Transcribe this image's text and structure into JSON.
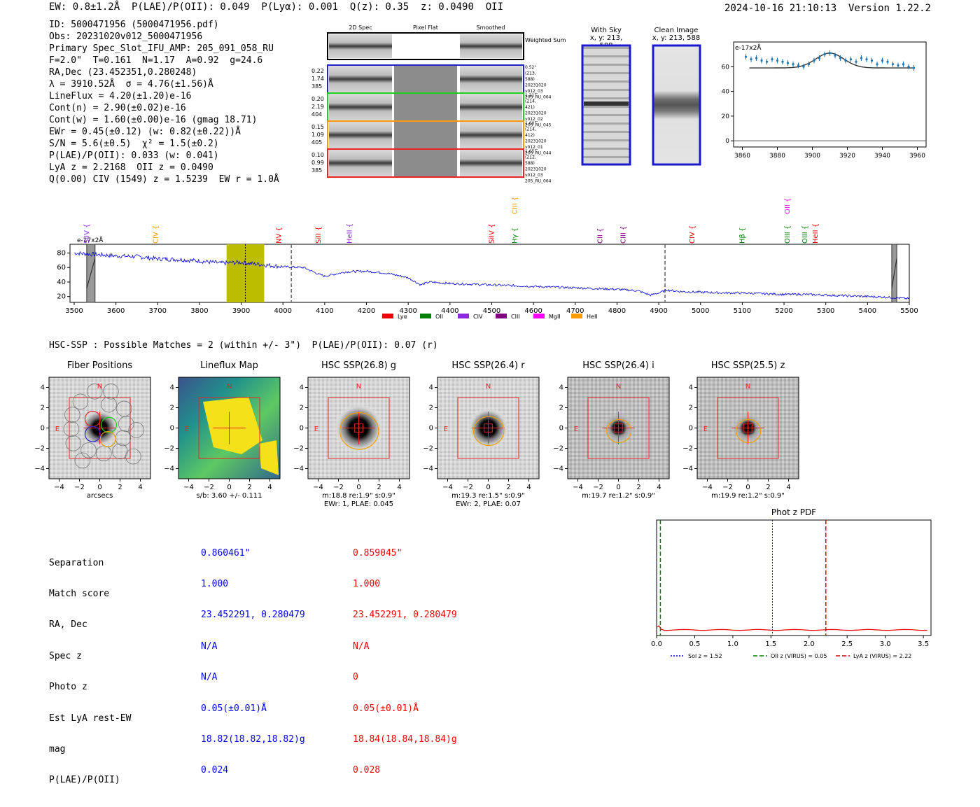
{
  "header": {
    "left": "EW: 0.8±1.2Å  P(LAE)/P(OII): 0.049  P(Lyα): 0.001  Q(z): 0.35  z: 0.0490  OII",
    "right": "2024-10-16 21:10:13  Version 1.22.2"
  },
  "info_lines": [
    "ID: 5000471956 (5000471956.pdf)",
    "Obs: 20231020v012_5000471956",
    "Primary Spec_Slot_IFU_AMP: 205_091_058_RU",
    "F=2.0\"  T=0.161  N=1.17  A=0.92  g=24.6",
    "RA,Dec (23.452351,0.280248)",
    "λ = 3910.52Å  σ = 4.76(±1.56)Å",
    "LineFlux = 4.20(±1.20)e-16",
    "Cont(n) = 2.90(±0.02)e-16",
    "Cont(w) = 1.60(±0.00)e-16 (gmag 18.71)",
    "EWr = 0.45(±0.12) (w: 0.82(±0.22))Å",
    "S/N = 5.6(±0.5)  χ² = 1.5(±0.2)",
    "P(LAE)/P(OII): 0.033 (w: 0.041)",
    "LyA z = 2.2168  OII z = 0.0490",
    "Q(0.00) CIV (1549) z = 1.5239  EW r = 1.0Å"
  ],
  "cutouts": {
    "headers": [
      "2D Spec",
      "Pixel Flat",
      "Smoothed"
    ],
    "weighted_label": "Weighted Sum",
    "rows": [
      {
        "left": "0.22 1.74 385",
        "right": "0.52\" (213, 588) 20231020 v012_03 205_RU_064",
        "color": "#2222cc"
      },
      {
        "left": "0.20 2.19 404",
        "right": "1.21\" (214, 421) 20231020 v012_02 205_RU_045",
        "color": "#22cc22"
      },
      {
        "left": "0.15 1.09 405",
        "right": "1.60\" (214, 412) 20231020 v012_01 205_RU_044",
        "color": "#ff9900"
      },
      {
        "left": "0.10 0.99 385",
        "right": "1.65\" (212, 588) 20231020 v012_03 205_RU_064",
        "color": "#ee2222"
      }
    ]
  },
  "sky": {
    "with_sky": "With Sky",
    "with_sky_xy": "x, y: 213, 588",
    "clean": "Clean Image",
    "clean_xy": "x, y: 213, 588"
  },
  "zoom_chart": {
    "type": "scatter",
    "ylabel": "e-17x2Å",
    "x_ticks": [
      3860,
      3880,
      3900,
      3920,
      3940,
      3960
    ],
    "y_ticks": [
      0,
      20,
      40,
      60
    ],
    "xlim": [
      3855,
      3965
    ],
    "ylim": [
      -5,
      80
    ],
    "x": [
      3862,
      3865,
      3868,
      3871,
      3874,
      3877,
      3880,
      3883,
      3886,
      3889,
      3892,
      3895,
      3898,
      3901,
      3904,
      3907,
      3910,
      3913,
      3916,
      3919,
      3922,
      3925,
      3928,
      3931,
      3934,
      3937,
      3940,
      3943,
      3946,
      3949,
      3952,
      3955,
      3958
    ],
    "y": [
      68,
      66,
      67,
      65,
      64,
      66,
      65,
      64,
      63,
      62,
      61,
      60,
      62,
      65,
      67,
      70,
      71,
      69,
      67,
      65,
      66,
      64,
      67,
      66,
      65,
      62,
      65,
      64,
      62,
      61,
      62,
      60,
      59
    ],
    "model_baseline": 59,
    "model_peak": 71,
    "model_center": 3910
  },
  "spectrum": {
    "type": "line",
    "ylabel": "e-17x2Å",
    "x_ticks": [
      3500,
      3600,
      3700,
      3800,
      3900,
      4000,
      4100,
      4200,
      4300,
      4400,
      4500,
      4600,
      4700,
      4800,
      4900,
      5000,
      5100,
      5200,
      5300,
      5400,
      5500
    ],
    "y_ticks": [
      20,
      40,
      60,
      80
    ],
    "xlim": [
      3490,
      5500
    ],
    "ylim": [
      12,
      92
    ],
    "knots_x": [
      3500,
      3550,
      3600,
      3650,
      3700,
      3750,
      3800,
      3850,
      3900,
      3950,
      4000,
      4050,
      4080,
      4100,
      4150,
      4200,
      4250,
      4300,
      4330,
      4350,
      4400,
      4450,
      4500,
      4550,
      4600,
      4650,
      4700,
      4750,
      4800,
      4850,
      4880,
      4900,
      4920,
      4950,
      5000,
      5050,
      5100,
      5150,
      5200,
      5250,
      5300,
      5350,
      5400,
      5450,
      5500
    ],
    "knots_y": [
      80,
      78,
      76,
      75,
      72,
      71,
      69,
      66,
      67,
      64,
      61,
      60,
      52,
      48,
      54,
      55,
      52,
      46,
      36,
      40,
      38,
      37,
      36,
      35,
      34,
      33,
      32,
      31,
      30,
      28,
      22,
      25,
      29,
      27,
      26,
      25,
      25,
      24,
      23,
      23,
      22,
      21,
      20,
      19,
      17
    ],
    "highlight": [
      3865,
      3955
    ],
    "dashed": [
      4020,
      4915
    ],
    "dotted": 3910,
    "masked": [
      [
        3530,
        3550
      ],
      [
        5458,
        5470
      ]
    ],
    "lines": [
      {
        "name": "SiIV",
        "wave": 3530,
        "color": "#8a2be2",
        "row": 0
      },
      {
        "name": "CIV",
        "wave": 3695,
        "color": "#ff9900",
        "row": 0
      },
      {
        "name": "NV",
        "wave": 3990,
        "color": "#ee0000",
        "row": 0
      },
      {
        "name": "SiII",
        "wave": 4085,
        "color": "#ee0000",
        "row": 0
      },
      {
        "name": "HeII",
        "wave": 4160,
        "color": "#8a2be2",
        "row": 0
      },
      {
        "name": "SiIV",
        "wave": 4500,
        "color": "#ee0000",
        "row": 0
      },
      {
        "name": "CIII",
        "wave": 4555,
        "color": "#ff9900",
        "row": 1
      },
      {
        "name": "Hγ",
        "wave": 4555,
        "color": "#008000",
        "row": 0
      },
      {
        "name": "CII",
        "wave": 4760,
        "color": "#800080",
        "row": 0
      },
      {
        "name": "CIII",
        "wave": 4815,
        "color": "#800080",
        "row": 0
      },
      {
        "name": "CIV",
        "wave": 4980,
        "color": "#ee0000",
        "row": 0
      },
      {
        "name": "Hβ",
        "wave": 5100,
        "color": "#008000",
        "row": 0
      },
      {
        "name": "OII",
        "wave": 5208,
        "color": "#ff00ff",
        "row": 1
      },
      {
        "name": "OIII",
        "wave": 5208,
        "color": "#008000",
        "row": 0
      },
      {
        "name": "OIII",
        "wave": 5250,
        "color": "#008000",
        "row": 0
      },
      {
        "name": "HeII",
        "wave": 5275,
        "color": "#ee0000",
        "row": 0
      }
    ],
    "legend": [
      {
        "name": "Lyα",
        "color": "#ee0000"
      },
      {
        "name": "OII",
        "color": "#008000"
      },
      {
        "name": "CIV",
        "color": "#8a2be2"
      },
      {
        "name": "CIII",
        "color": "#800080"
      },
      {
        "name": "MgII",
        "color": "#ff00ff"
      },
      {
        "name": "HeII",
        "color": "#ff9900"
      }
    ]
  },
  "hsc_title": "HSC-SSP : Possible Matches = 2 (within +/- 3\")  P(LAE)/P(OII): 0.07 (r)",
  "panels": [
    {
      "title": "Fiber Positions",
      "caption": "arcsecs",
      "caption2": ""
    },
    {
      "title": "Lineflux Map",
      "caption": "s/b: 3.60 +/- 0.111",
      "caption2": ""
    },
    {
      "title": "HSC SSP(26.8) g",
      "caption": "m:18.8  re:1.9\"  s:0.9\"",
      "caption2": "EWr: 1, PLAE: 0.045"
    },
    {
      "title": "HSC SSP(26.4) r",
      "caption": "m:19.3  re:1.5\"  s:0.9\"",
      "caption2": "EWr: 2, PLAE: 0.07"
    },
    {
      "title": "HSC SSP(26.4) i",
      "caption": "m:19.7  re:1.2\"  s:0.9\"",
      "caption2": ""
    },
    {
      "title": "HSC SSP(25.5) z",
      "caption": "m:19.9  re:1.2\"  s:0.9\"",
      "caption2": ""
    }
  ],
  "panel_ticks": [
    -4,
    -2,
    0,
    2,
    4
  ],
  "compass": {
    "n": "N",
    "e": "E"
  },
  "table": {
    "labels": [
      "Separation",
      "Match score",
      "RA, Dec",
      "Spec z",
      "Photo z",
      "Est LyA rest-EW",
      "mag",
      "P(LAE)/P(OII)"
    ],
    "blue": [
      "0.860461\"",
      "1.000",
      "23.452291, 0.280479",
      "N/A",
      "N/A",
      "0.05(±0.01)Å",
      "18.82(18.82,18.82)g",
      "0.024"
    ],
    "red": [
      "0.859045\"",
      "1.000",
      "23.452291, 0.280479",
      "N/A",
      "0",
      "0.05(±0.01)Å",
      "18.84(18.84,18.84)g",
      "0.028"
    ]
  },
  "photz": {
    "type": "line",
    "title": "Phot z PDF",
    "x_ticks": [
      0.0,
      0.5,
      1.0,
      1.5,
      2.0,
      2.5,
      3.0,
      3.5
    ],
    "xlim": [
      0,
      3.6
    ],
    "sol_z": 1.52,
    "oii_z": 0.05,
    "lya_z": 2.22,
    "legend": [
      {
        "name": "Sol z = 1.52",
        "color": "#0000ee",
        "dash": "2,2"
      },
      {
        "name": "OII z (VIRUS) = 0.05",
        "color": "#008000",
        "dash": "6,3"
      },
      {
        "name": "LyA z (VIRUS) = 2.22",
        "color": "#ee0000",
        "dash": "6,3"
      }
    ]
  }
}
